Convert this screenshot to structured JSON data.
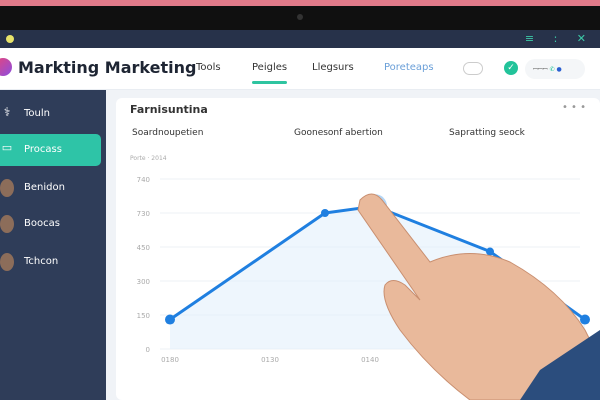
{
  "app": {
    "title": "Markting Marketing"
  },
  "nav": [
    {
      "label": "Tools"
    },
    {
      "label": "Peigles",
      "active": true
    },
    {
      "label": "Llegsurs"
    },
    {
      "label": "Poreteaps"
    }
  ],
  "header_pill": "ꟷꟷꟷ",
  "sidebar": {
    "items": [
      {
        "label": "Touln",
        "icon": "caduceus-icon"
      },
      {
        "label": "Procass",
        "icon": "monitor-icon",
        "active": true
      },
      {
        "label": "Benidon",
        "icon": "avatar"
      },
      {
        "label": "Boocas",
        "icon": "avatar"
      },
      {
        "label": "Tchcon",
        "icon": "avatar"
      }
    ]
  },
  "card": {
    "title": "Farnisuntina",
    "menu": "• • •",
    "subtabs": [
      "Soardnoupetien",
      "Goonesonf abertion",
      "Sapratting seock"
    ],
    "hint": "Porte · 2014"
  },
  "colors": {
    "accent": "#2ec4a7",
    "line": "#1f7fe0",
    "sidebar": "#2f3d59"
  },
  "chart_data": {
    "type": "line",
    "y_tick_labels": [
      "0",
      "150",
      "300",
      "450",
      "730",
      "740"
    ],
    "x_tick_labels": [
      "0180",
      "0130",
      "0140",
      "3038",
      "0138"
    ],
    "series": [
      {
        "points": [
          [
            0,
            130
          ],
          [
            1.55,
            600
          ],
          [
            2.05,
            630
          ],
          [
            3.2,
            430
          ],
          [
            4.15,
            130
          ]
        ]
      }
    ],
    "ylim": [
      0,
      750
    ],
    "grid": true,
    "highlighted_point": 2
  }
}
